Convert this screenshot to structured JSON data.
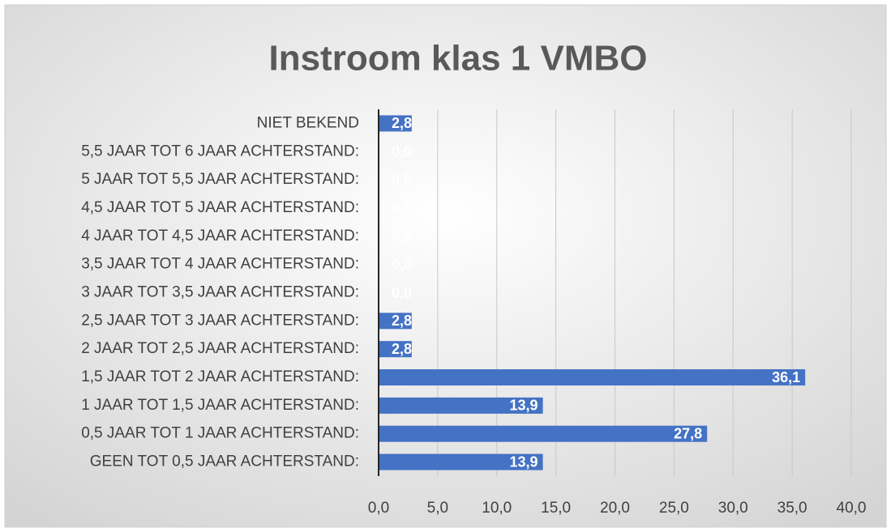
{
  "chart_data": {
    "type": "bar",
    "orientation": "horizontal",
    "title": "Instroom klas 1 VMBO",
    "categories": [
      "GEEN TOT 0,5 JAAR ACHTERSTAND:",
      "0,5 JAAR TOT 1 JAAR ACHTERSTAND:",
      "1 JAAR TOT 1,5 JAAR ACHTERSTAND:",
      "1,5 JAAR TOT 2 JAAR ACHTERSTAND:",
      "2 JAAR TOT 2,5 JAAR ACHTERSTAND:",
      "2,5 JAAR TOT 3 JAAR ACHTERSTAND:",
      "3 JAAR TOT 3,5 JAAR ACHTERSTAND:",
      "3,5 JAAR TOT 4 JAAR ACHTERSTAND:",
      "4 JAAR TOT 4,5 JAAR ACHTERSTAND:",
      "4,5 JAAR TOT 5 JAAR ACHTERSTAND:",
      "5 JAAR TOT 5,5 JAAR ACHTERSTAND:",
      "5,5 JAAR TOT 6 JAAR ACHTERSTAND:",
      "NIET BEKEND"
    ],
    "values": [
      13.9,
      27.8,
      13.9,
      36.1,
      2.8,
      2.8,
      0,
      0,
      0,
      0,
      0,
      0,
      2.8
    ],
    "value_labels": [
      "13,9",
      "27,8",
      "13,9",
      "36,1",
      "2,8",
      "2,8",
      "0,0",
      "0,0",
      "0,0",
      "0,0",
      "0,0",
      "0,0",
      "2,8"
    ],
    "color": "#4472c4",
    "xlim": [
      0,
      40
    ],
    "xticks": [
      {
        "value": 0,
        "label": "0,0"
      },
      {
        "value": 5,
        "label": "5,0"
      },
      {
        "value": 10,
        "label": "10,0"
      },
      {
        "value": 15,
        "label": "15,0"
      },
      {
        "value": 20,
        "label": "20,0"
      },
      {
        "value": 25,
        "label": "25,0"
      },
      {
        "value": 30,
        "label": "30,0"
      },
      {
        "value": 35,
        "label": "35,0"
      },
      {
        "value": 40,
        "label": "40,0"
      }
    ],
    "grid": true
  }
}
